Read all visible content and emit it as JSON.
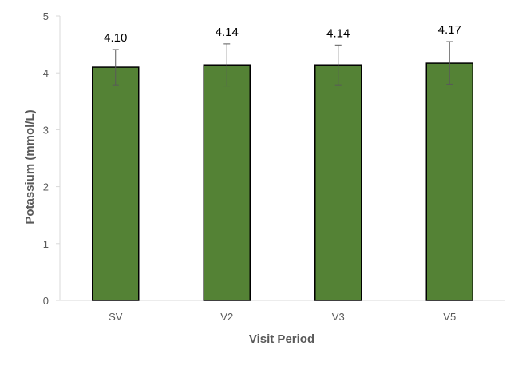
{
  "chart_data": {
    "type": "bar",
    "title": "",
    "xlabel": "Visit Period",
    "ylabel": "Potassium (mmol/L)",
    "categories": [
      "SV",
      "V2",
      "V3",
      "V5"
    ],
    "values": [
      4.1,
      4.14,
      4.14,
      4.17
    ],
    "data_labels": [
      "4.10",
      "4.14",
      "4.14",
      "4.17"
    ],
    "error_bars": {
      "upper": [
        4.41,
        4.51,
        4.49,
        4.55
      ],
      "lower": [
        3.79,
        3.77,
        3.79,
        3.8
      ]
    },
    "ylim": [
      0,
      5
    ],
    "yticks": [
      0,
      1,
      2,
      3,
      4,
      5
    ],
    "ytick_labels": [
      "0",
      "1",
      "2",
      "3",
      "4",
      "5"
    ],
    "grid": false,
    "legend": "none",
    "bar_color": "#548235",
    "bar_edge_color": "#000000"
  }
}
